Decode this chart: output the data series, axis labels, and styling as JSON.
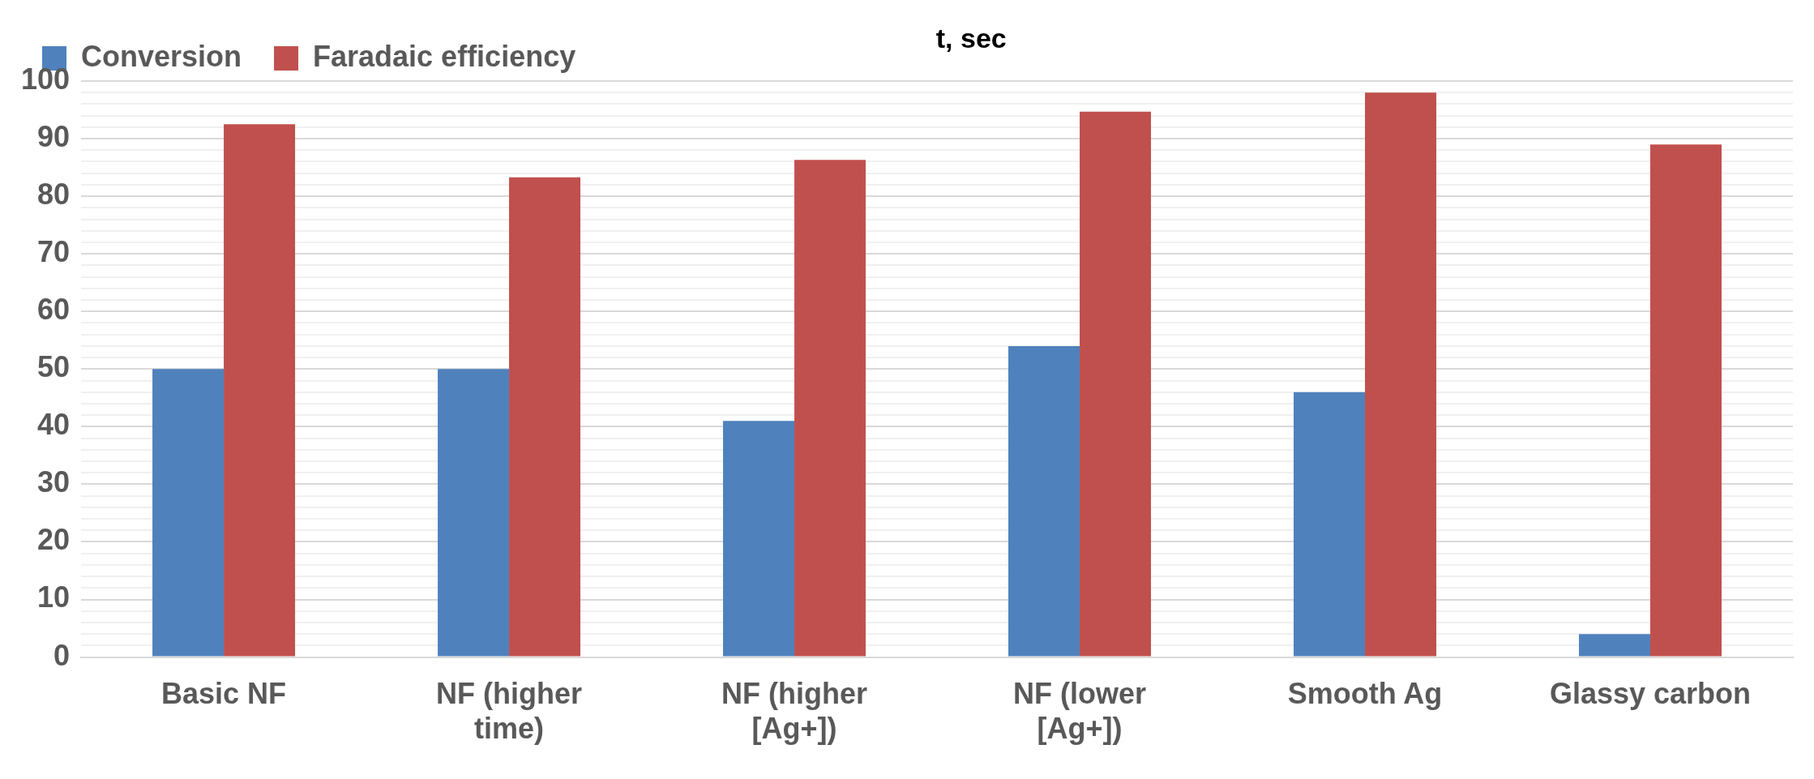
{
  "chart_data": {
    "type": "bar",
    "categories": [
      "Basic NF",
      "NF (higher time)",
      "NF (higher [Ag+])",
      "NF (lower [Ag+])",
      "Smooth Ag",
      "Glassy carbon"
    ],
    "series": [
      {
        "name": "Conversion",
        "color": "#4f81bd",
        "values": [
          50,
          50,
          41,
          54,
          46,
          4
        ]
      },
      {
        "name": "Faradaic efficiency",
        "color": "#c0504d",
        "values": [
          92.5,
          83.3,
          86.3,
          94.7,
          98,
          89
        ]
      }
    ],
    "ylim": [
      0,
      100
    ],
    "yticks": [
      0,
      {
        "value": 2,
        "label": null
      },
      {
        "value": 4,
        "label": null
      },
      {
        "value": 6,
        "label": null
      },
      {
        "value": 8,
        "label": null
      },
      10,
      {
        "value": 12,
        "label": null
      },
      {
        "value": 14,
        "label": null
      },
      {
        "value": 16,
        "label": null
      },
      {
        "value": 18,
        "label": null
      },
      20,
      {
        "value": 22,
        "label": null
      },
      {
        "value": 24,
        "label": null
      },
      {
        "value": 26,
        "label": null
      },
      {
        "value": 28,
        "label": null
      },
      30,
      {
        "value": 32,
        "label": null
      },
      {
        "value": 34,
        "label": null
      },
      {
        "value": 36,
        "label": null
      },
      {
        "value": 38,
        "label": null
      },
      40,
      {
        "value": 42,
        "label": null
      },
      {
        "value": 44,
        "label": null
      },
      {
        "value": 46,
        "label": null
      },
      {
        "value": 48,
        "label": null
      },
      50,
      {
        "value": 52,
        "label": null
      },
      {
        "value": 54,
        "label": null
      },
      {
        "value": 56,
        "label": null
      },
      {
        "value": 58,
        "label": null
      },
      60,
      {
        "value": 62,
        "label": null
      },
      {
        "value": 64,
        "label": null
      },
      {
        "value": 66,
        "label": null
      },
      {
        "value": 68,
        "label": null
      },
      70,
      {
        "value": 72,
        "label": null
      },
      {
        "value": 74,
        "label": null
      },
      {
        "value": 76,
        "label": null
      },
      {
        "value": 78,
        "label": null
      },
      80,
      {
        "value": 82,
        "label": null
      },
      {
        "value": 84,
        "label": null
      },
      {
        "value": 86,
        "label": null
      },
      {
        "value": 88,
        "label": null
      },
      90,
      {
        "value": 92,
        "label": null
      },
      {
        "value": 94,
        "label": null
      },
      {
        "value": 96,
        "label": null
      },
      {
        "value": 98,
        "label": null
      },
      100
    ],
    "grid": "y",
    "legend": "top left",
    "annotations": [
      "t, sec"
    ]
  }
}
